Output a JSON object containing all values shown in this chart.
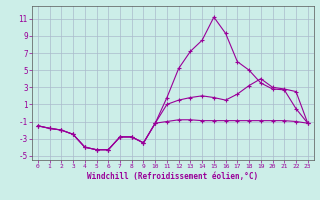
{
  "xlabel": "Windchill (Refroidissement éolien,°C)",
  "bg_color": "#cceee8",
  "grid_color": "#aabbcc",
  "line_color": "#990099",
  "x": [
    0,
    1,
    2,
    3,
    4,
    5,
    6,
    7,
    8,
    9,
    10,
    11,
    12,
    13,
    14,
    15,
    16,
    17,
    18,
    19,
    20,
    21,
    22,
    23
  ],
  "line1": [
    -1.5,
    -1.8,
    -2.0,
    -2.5,
    -4.0,
    -4.3,
    -4.3,
    -2.8,
    -2.8,
    -3.5,
    -1.2,
    1.8,
    5.2,
    7.2,
    8.5,
    11.2,
    9.3,
    6.0,
    5.0,
    3.5,
    2.8,
    2.7,
    0.5,
    -1.2
  ],
  "line2": [
    -1.5,
    -1.8,
    -2.0,
    -2.5,
    -4.0,
    -4.3,
    -4.3,
    -2.8,
    -2.8,
    -3.5,
    -1.2,
    1.0,
    1.5,
    1.8,
    2.0,
    1.8,
    1.5,
    2.2,
    3.2,
    4.0,
    3.0,
    2.8,
    2.5,
    -1.2
  ],
  "line3": [
    -1.5,
    -1.8,
    -2.0,
    -2.5,
    -4.0,
    -4.3,
    -4.3,
    -2.8,
    -2.8,
    -3.5,
    -1.2,
    -1.0,
    -0.8,
    -0.8,
    -0.9,
    -0.9,
    -0.9,
    -0.9,
    -0.9,
    -0.9,
    -0.9,
    -0.9,
    -1.0,
    -1.2
  ],
  "ylim": [
    -5.5,
    12.5
  ],
  "xlim": [
    -0.5,
    23.5
  ],
  "yticks": [
    -5,
    -3,
    -1,
    1,
    3,
    5,
    7,
    9,
    11
  ],
  "xticks": [
    0,
    1,
    2,
    3,
    4,
    5,
    6,
    7,
    8,
    9,
    10,
    11,
    12,
    13,
    14,
    15,
    16,
    17,
    18,
    19,
    20,
    21,
    22,
    23
  ],
  "xlabel_fontsize": 5.5,
  "tick_fontsize_y": 5.5,
  "tick_fontsize_x": 4.5,
  "linewidth": 0.8,
  "markersize": 3
}
